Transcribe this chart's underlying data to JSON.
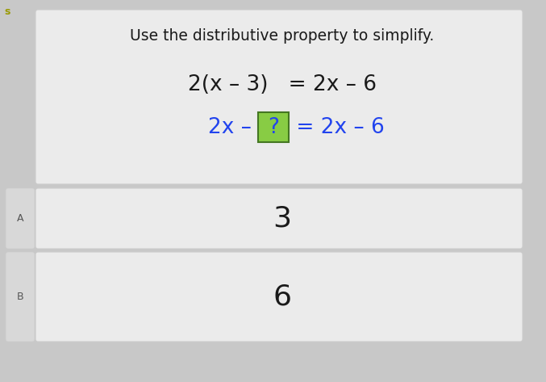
{
  "background_color": "#c8c8c8",
  "title_box_color": "#ebebeb",
  "answer_box_color": "#ebebeb",
  "title_text": "Use the distributive property to simplify.",
  "line1_text": "2(x – 3)   = 2x – 6",
  "line2_prefix": "2x – ",
  "line2_question": "?",
  "line2_suffix": " = 2x – 6",
  "answer_A": "3",
  "answer_B": "6",
  "label_A": "A",
  "label_B": "B",
  "title_fontsize": 13.5,
  "eq_fontsize": 19,
  "answer_fontsize": 26,
  "label_fontsize": 9,
  "line2_color": "#2244ee",
  "question_box_color": "#88cc44",
  "question_text_color": "#2244ee",
  "normal_text_color": "#1a1a1a",
  "label_color": "#555555",
  "side_tab_color": "#d8d8d8",
  "border_color": "#cccccc",
  "s_color": "#999900"
}
